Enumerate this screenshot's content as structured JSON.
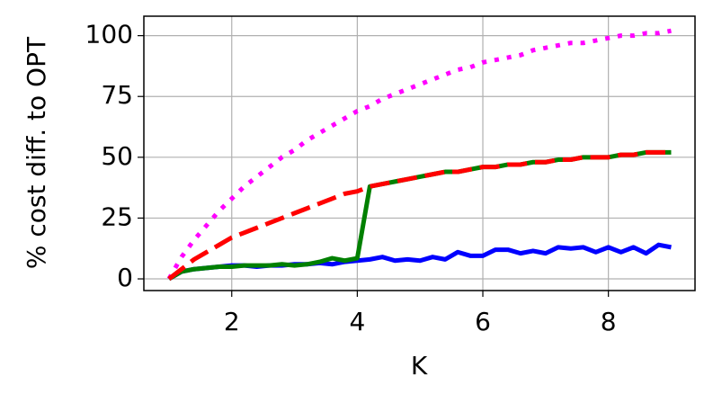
{
  "chart_data": {
    "type": "line",
    "xlabel": "K",
    "ylabel": "% cost diff. to OPT",
    "x": [
      1.0,
      1.2,
      1.4,
      1.6,
      1.8,
      2.0,
      2.2,
      2.4,
      2.6,
      2.8,
      3.0,
      3.2,
      3.4,
      3.6,
      3.8,
      4.0,
      4.2,
      4.4,
      4.6,
      4.8,
      5.0,
      5.2,
      5.4,
      5.6,
      5.8,
      6.0,
      6.2,
      6.4,
      6.6,
      6.8,
      7.0,
      7.2,
      7.4,
      7.6,
      7.8,
      8.0,
      8.2,
      8.4,
      8.6,
      8.8,
      9.0
    ],
    "series": [
      {
        "color": "#ff00ff",
        "style": "dotted",
        "values": [
          0,
          9,
          16,
          22,
          28,
          33,
          38,
          42,
          46,
          50,
          53,
          57,
          60,
          63,
          66,
          69,
          71,
          74,
          76,
          78,
          80,
          82,
          84,
          86,
          87,
          89,
          90,
          91,
          92,
          94,
          95,
          96,
          97,
          97,
          98,
          99,
          100,
          100,
          101,
          101,
          102
        ]
      },
      {
        "color": "#0000ff",
        "style": "solid",
        "values": [
          0,
          3,
          4,
          4.5,
          5,
          5.5,
          5.5,
          5,
          5.5,
          5.5,
          6,
          6,
          6.5,
          6,
          7,
          7.5,
          8,
          9,
          7.5,
          8,
          7.5,
          9,
          8,
          11,
          9.5,
          9.5,
          12,
          12,
          10.5,
          11.5,
          10.5,
          13,
          12.5,
          13,
          11,
          13,
          11,
          13,
          10.5,
          14,
          13
        ]
      },
      {
        "color": "#008000",
        "style": "solid",
        "values": [
          0,
          3,
          4,
          4.5,
          5,
          5,
          5.5,
          5.5,
          5.5,
          6,
          5.5,
          6,
          7,
          8.5,
          7.5,
          8.5,
          38,
          39,
          40,
          41,
          42,
          43,
          44,
          44,
          45,
          46,
          46,
          47,
          47,
          48,
          48,
          49,
          49,
          50,
          50,
          50,
          51,
          51,
          52,
          52,
          52
        ]
      },
      {
        "color": "#ff0000",
        "style": "dashed",
        "values": [
          0,
          4,
          8,
          11,
          14,
          17,
          19,
          21,
          23,
          25,
          27,
          29,
          31,
          33,
          35,
          36,
          38,
          39,
          40,
          41,
          42,
          43,
          44,
          44,
          45,
          46,
          46,
          47,
          47,
          48,
          48,
          49,
          49,
          50,
          50,
          50,
          51,
          51,
          52,
          52,
          52
        ]
      }
    ],
    "xlim": [
      0.6,
      9.38
    ],
    "ylim": [
      -4.8,
      108
    ],
    "xticks": [
      2,
      4,
      6,
      8
    ],
    "yticks": [
      0,
      25,
      50,
      75,
      100
    ],
    "grid": true
  }
}
